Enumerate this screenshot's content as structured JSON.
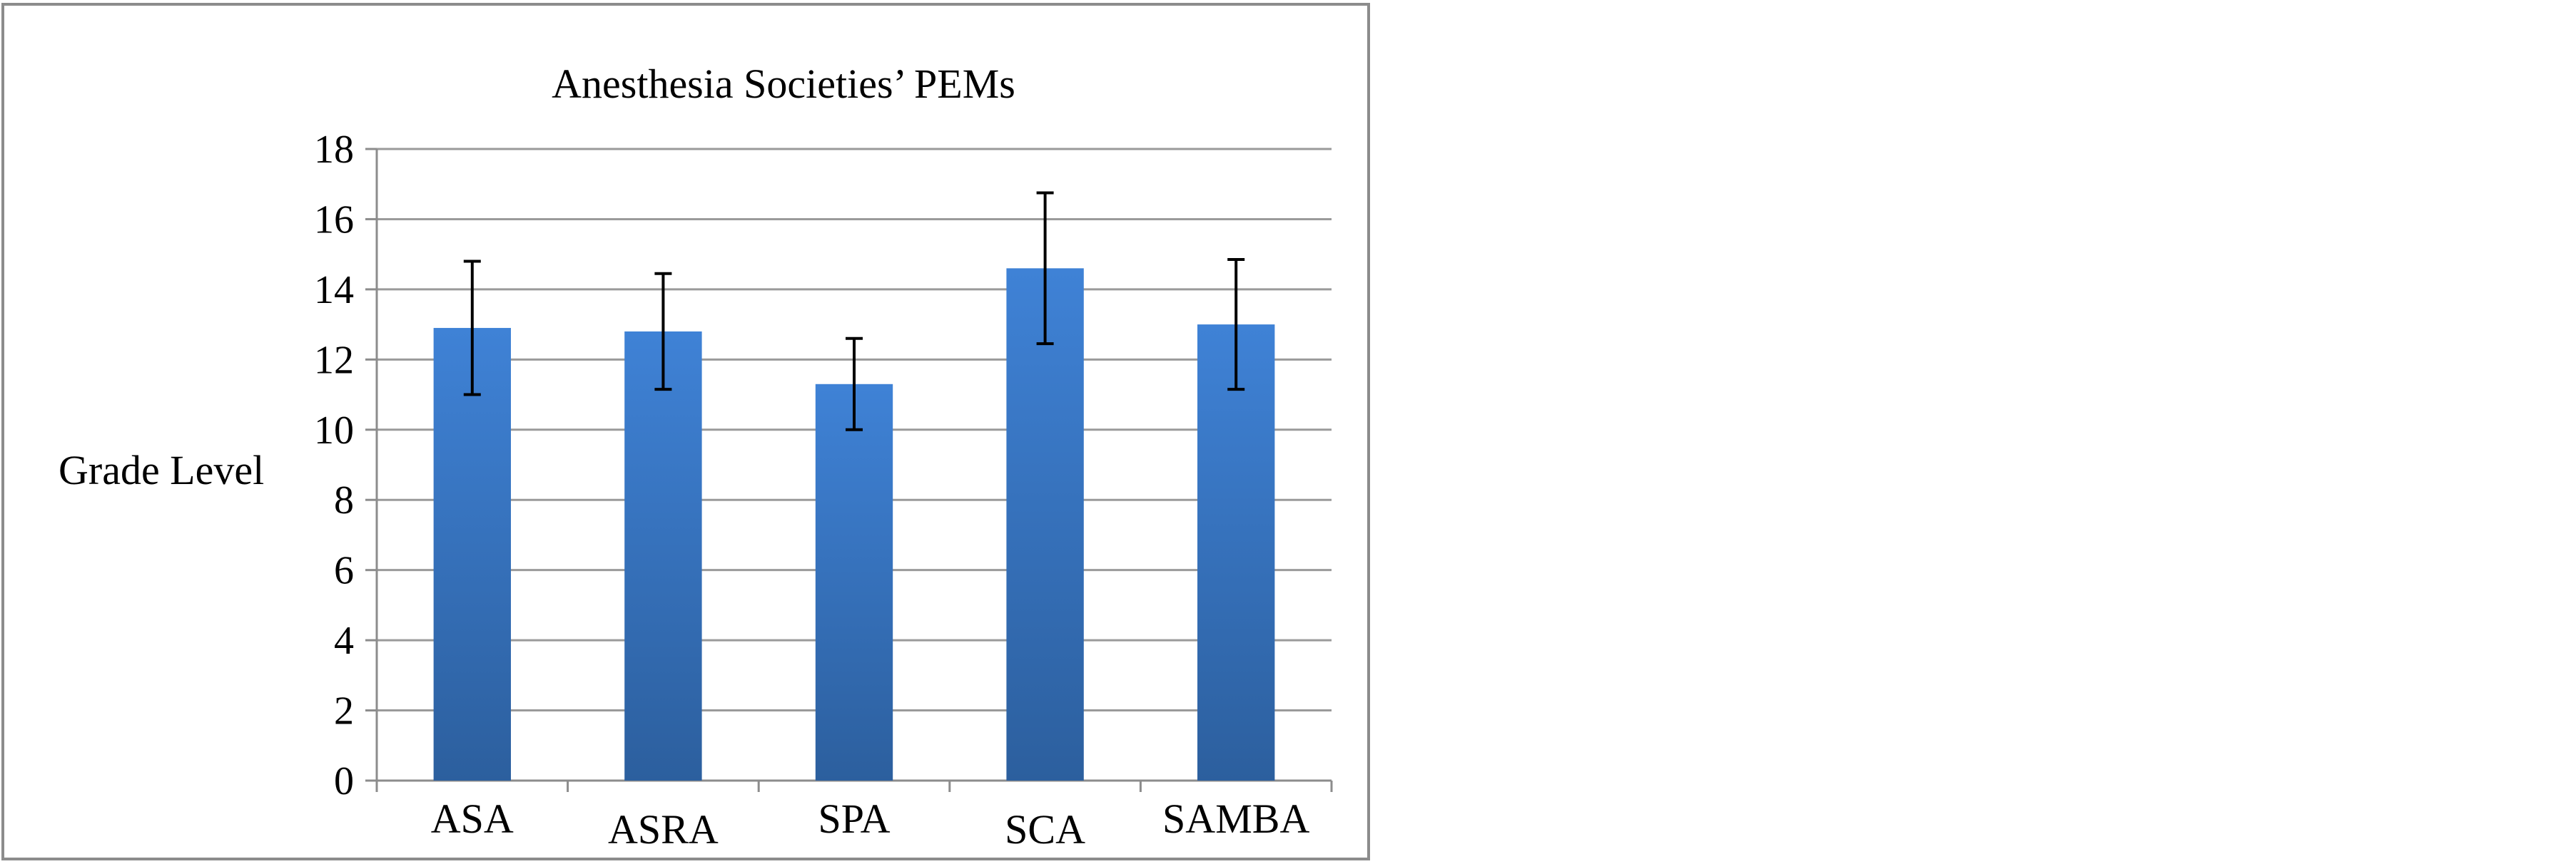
{
  "chart_data": {
    "type": "bar",
    "title": "Anesthesia Societies’ PEMs",
    "ylabel": "Grade Level",
    "xlabel": "",
    "categories": [
      "ASA",
      "ASRA",
      "SPA",
      "SCA",
      "SAMBA"
    ],
    "series": [
      {
        "values": [
          12.9,
          12.8,
          11.3,
          14.6,
          13.0
        ],
        "error": [
          1.9,
          1.65,
          1.3,
          2.15,
          1.85
        ]
      }
    ],
    "ylim": [
      0,
      18
    ],
    "yticks": [
      "0",
      "2",
      "4",
      "6",
      "8",
      "10",
      "12",
      "14",
      "16",
      "18"
    ],
    "grid": true,
    "legend": "none",
    "colors": {
      "bar_top": "#3f82d6",
      "bar_bottom": "#2c5f9e",
      "grid": "#9a9a9a",
      "error_bar": "#000000"
    }
  }
}
